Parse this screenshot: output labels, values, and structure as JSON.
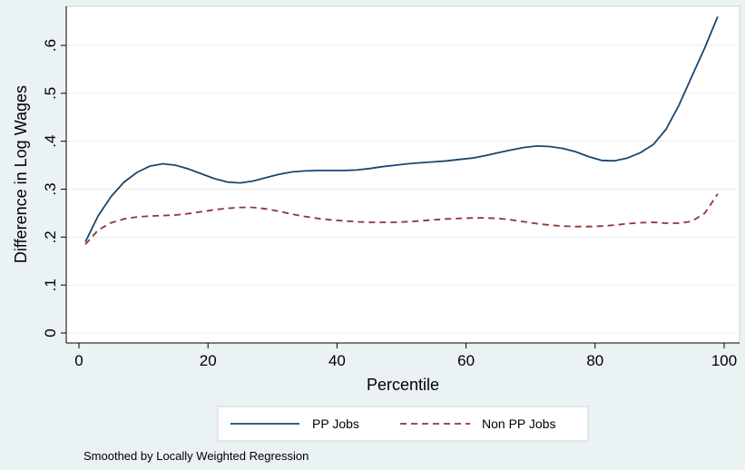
{
  "chart_data": {
    "type": "line",
    "xlabel": "Percentile",
    "ylabel": "Difference in Log Wages",
    "xlim": [
      0,
      100
    ],
    "ylim": [
      0,
      0.68
    ],
    "xticks": [
      0,
      20,
      40,
      60,
      80,
      100
    ],
    "xtick_labels": [
      "0",
      "20",
      "40",
      "60",
      "80",
      "100"
    ],
    "yticks": [
      0,
      0.1,
      0.2,
      0.3,
      0.4,
      0.5,
      0.6
    ],
    "ytick_labels": [
      "0",
      ".1",
      ".2",
      ".3",
      ".4",
      ".5",
      ".6"
    ],
    "grid": true,
    "legend_position": "bottom",
    "series": [
      {
        "name": "PP Jobs",
        "color": "#1a476f",
        "style": "solid",
        "x": [
          1,
          3,
          5,
          7,
          9,
          11,
          13,
          15,
          17,
          19,
          21,
          23,
          25,
          27,
          29,
          31,
          33,
          35,
          37,
          39,
          41,
          43,
          45,
          47,
          49,
          51,
          53,
          55,
          57,
          59,
          61,
          63,
          65,
          67,
          69,
          71,
          73,
          75,
          77,
          79,
          81,
          83,
          85,
          87,
          89,
          91,
          93,
          95,
          97,
          99
        ],
        "y": [
          0.19,
          0.245,
          0.285,
          0.315,
          0.335,
          0.348,
          0.353,
          0.35,
          0.342,
          0.332,
          0.322,
          0.315,
          0.313,
          0.317,
          0.324,
          0.331,
          0.336,
          0.338,
          0.339,
          0.339,
          0.339,
          0.34,
          0.343,
          0.347,
          0.35,
          0.353,
          0.355,
          0.357,
          0.359,
          0.362,
          0.365,
          0.37,
          0.376,
          0.382,
          0.387,
          0.39,
          0.389,
          0.385,
          0.378,
          0.368,
          0.36,
          0.359,
          0.365,
          0.376,
          0.393,
          0.425,
          0.475,
          0.535,
          0.595,
          0.66
        ]
      },
      {
        "name": "Non PP Jobs",
        "color": "#90353b",
        "style": "dashed",
        "x": [
          1,
          3,
          5,
          7,
          9,
          11,
          13,
          15,
          17,
          19,
          21,
          23,
          25,
          27,
          29,
          31,
          33,
          35,
          37,
          39,
          41,
          43,
          45,
          47,
          49,
          51,
          53,
          55,
          57,
          59,
          61,
          63,
          65,
          67,
          69,
          71,
          73,
          75,
          77,
          79,
          81,
          83,
          85,
          87,
          89,
          91,
          93,
          95,
          97,
          99
        ],
        "y": [
          0.185,
          0.215,
          0.23,
          0.238,
          0.242,
          0.244,
          0.245,
          0.246,
          0.249,
          0.253,
          0.257,
          0.26,
          0.262,
          0.262,
          0.259,
          0.254,
          0.248,
          0.243,
          0.239,
          0.236,
          0.234,
          0.232,
          0.231,
          0.231,
          0.231,
          0.232,
          0.234,
          0.236,
          0.238,
          0.239,
          0.24,
          0.24,
          0.239,
          0.236,
          0.232,
          0.228,
          0.225,
          0.223,
          0.222,
          0.222,
          0.223,
          0.225,
          0.228,
          0.23,
          0.231,
          0.229,
          0.229,
          0.233,
          0.25,
          0.29
        ]
      }
    ]
  },
  "note": "Smoothed by Locally Weighted Regression"
}
